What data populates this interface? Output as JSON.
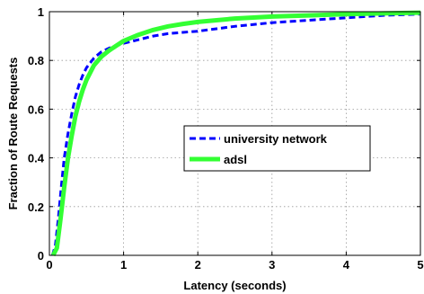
{
  "chart_data": {
    "type": "line",
    "title": "",
    "xlabel": "Latency (seconds)",
    "ylabel": "Fraction of Route Requests",
    "xlim": [
      0,
      5
    ],
    "ylim": [
      0,
      1
    ],
    "x_ticks": [
      "0",
      "1",
      "2",
      "3",
      "4",
      "5"
    ],
    "y_ticks": [
      "0",
      "0.2",
      "0.4",
      "0.6",
      "0.8",
      "1"
    ],
    "grid": true,
    "legend": {
      "position": "center-right"
    },
    "series": [
      {
        "name": "university network",
        "color": "#0000ff",
        "style": "dashed",
        "x": [
          0.04,
          0.08,
          0.12,
          0.16,
          0.2,
          0.25,
          0.3,
          0.35,
          0.4,
          0.45,
          0.5,
          0.6,
          0.7,
          0.8,
          0.9,
          1.0,
          1.2,
          1.4,
          1.6,
          1.8,
          2.0,
          2.5,
          3.0,
          3.5,
          4.0,
          4.5,
          5.0
        ],
        "y": [
          0.0,
          0.04,
          0.15,
          0.28,
          0.4,
          0.5,
          0.58,
          0.65,
          0.7,
          0.74,
          0.77,
          0.81,
          0.835,
          0.85,
          0.86,
          0.87,
          0.885,
          0.9,
          0.91,
          0.915,
          0.92,
          0.94,
          0.955,
          0.965,
          0.975,
          0.985,
          0.99
        ]
      },
      {
        "name": "adsl",
        "color": "#33ff33",
        "style": "solid",
        "x": [
          0.05,
          0.1,
          0.15,
          0.2,
          0.25,
          0.3,
          0.35,
          0.4,
          0.45,
          0.5,
          0.6,
          0.7,
          0.8,
          0.9,
          1.0,
          1.2,
          1.4,
          1.6,
          1.8,
          2.0,
          2.5,
          3.0,
          3.5,
          4.0,
          4.5,
          5.0
        ],
        "y": [
          0.0,
          0.03,
          0.15,
          0.28,
          0.4,
          0.49,
          0.57,
          0.63,
          0.68,
          0.72,
          0.78,
          0.815,
          0.84,
          0.86,
          0.88,
          0.905,
          0.925,
          0.94,
          0.95,
          0.958,
          0.972,
          0.98,
          0.985,
          0.99,
          0.993,
          0.996
        ]
      }
    ]
  }
}
